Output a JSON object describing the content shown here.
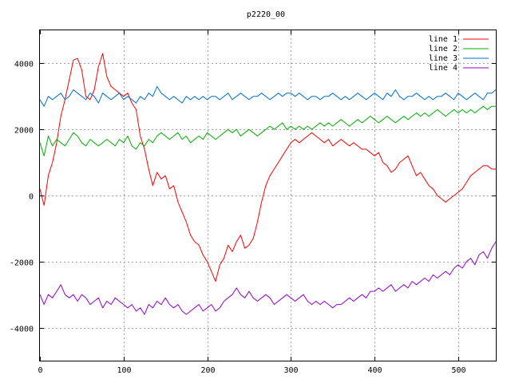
{
  "chart_data": {
    "type": "line",
    "title": "p2220_00",
    "xlabel": "",
    "ylabel": "",
    "xlim": [
      0,
      545
    ],
    "ylim": [
      -5000,
      5000
    ],
    "xticks": [
      0,
      100,
      200,
      300,
      400,
      500
    ],
    "yticks": [
      -4000,
      -2000,
      0,
      2000,
      4000
    ],
    "grid": true,
    "legend_position": "top-right",
    "series": [
      {
        "name": "line 1",
        "color": "#ff0000",
        "x": [
          0,
          5,
          10,
          15,
          20,
          25,
          30,
          35,
          40,
          45,
          50,
          55,
          60,
          65,
          70,
          75,
          80,
          85,
          90,
          95,
          100,
          105,
          110,
          115,
          120,
          125,
          130,
          135,
          140,
          145,
          150,
          155,
          160,
          165,
          170,
          175,
          180,
          185,
          190,
          195,
          200,
          205,
          210,
          215,
          220,
          225,
          230,
          235,
          240,
          245,
          250,
          255,
          260,
          265,
          270,
          275,
          280,
          285,
          290,
          295,
          300,
          305,
          310,
          315,
          320,
          325,
          330,
          335,
          340,
          345,
          350,
          355,
          360,
          365,
          370,
          375,
          380,
          385,
          390,
          395,
          400,
          405,
          410,
          415,
          420,
          425,
          430,
          435,
          440,
          445,
          450,
          455,
          460,
          465,
          470,
          475,
          480,
          485,
          490,
          495,
          500,
          505,
          510,
          515,
          520,
          525,
          530,
          535,
          540,
          545
        ],
        "y": [
          200,
          -300,
          600,
          1000,
          1600,
          2400,
          2900,
          3500,
          4100,
          4150,
          3800,
          3000,
          2900,
          3200,
          3900,
          4300,
          3600,
          3300,
          3200,
          3100,
          3000,
          3100,
          2800,
          2600,
          1800,
          1400,
          800,
          300,
          700,
          500,
          600,
          200,
          300,
          -200,
          -500,
          -800,
          -1200,
          -1400,
          -1500,
          -1800,
          -2000,
          -2300,
          -2600,
          -2100,
          -1900,
          -1500,
          -1700,
          -1400,
          -1200,
          -1600,
          -1500,
          -1300,
          -800,
          -200,
          300,
          600,
          800,
          1000,
          1200,
          1400,
          1600,
          1700,
          1600,
          1700,
          1800,
          1900,
          1800,
          1700,
          1600,
          1700,
          1500,
          1600,
          1700,
          1600,
          1500,
          1600,
          1500,
          1400,
          1400,
          1300,
          1200,
          1300,
          1000,
          900,
          700,
          800,
          1000,
          1100,
          1200,
          900,
          600,
          700,
          500,
          300,
          200,
          0,
          -100,
          -200,
          -100,
          0,
          100,
          200,
          400,
          600,
          700,
          800,
          900,
          900,
          800,
          800
        ]
      },
      {
        "name": "line 2",
        "color": "#00b000",
        "x": [
          0,
          5,
          10,
          15,
          20,
          25,
          30,
          35,
          40,
          45,
          50,
          55,
          60,
          65,
          70,
          75,
          80,
          85,
          90,
          95,
          100,
          105,
          110,
          115,
          120,
          125,
          130,
          135,
          140,
          145,
          150,
          155,
          160,
          165,
          170,
          175,
          180,
          185,
          190,
          195,
          200,
          205,
          210,
          215,
          220,
          225,
          230,
          235,
          240,
          245,
          250,
          255,
          260,
          265,
          270,
          275,
          280,
          285,
          290,
          295,
          300,
          305,
          310,
          315,
          320,
          325,
          330,
          335,
          340,
          345,
          350,
          355,
          360,
          365,
          370,
          375,
          380,
          385,
          390,
          395,
          400,
          405,
          410,
          415,
          420,
          425,
          430,
          435,
          440,
          445,
          450,
          455,
          460,
          465,
          470,
          475,
          480,
          485,
          490,
          495,
          500,
          505,
          510,
          515,
          520,
          525,
          530,
          535,
          540,
          545
        ],
        "y": [
          1600,
          1200,
          1800,
          1500,
          1700,
          1600,
          1500,
          1700,
          1900,
          1800,
          1600,
          1500,
          1700,
          1600,
          1500,
          1600,
          1700,
          1600,
          1500,
          1700,
          1600,
          1800,
          1500,
          1400,
          1600,
          1500,
          1700,
          1600,
          1800,
          1900,
          1800,
          1700,
          1800,
          1900,
          1700,
          1800,
          1600,
          1700,
          1800,
          1700,
          1900,
          1800,
          1700,
          1800,
          1900,
          2000,
          1900,
          2000,
          1800,
          1900,
          2000,
          1900,
          1800,
          1900,
          2000,
          2100,
          2000,
          2100,
          2200,
          2000,
          2100,
          2000,
          2100,
          2000,
          2100,
          2000,
          2100,
          2200,
          2100,
          2200,
          2100,
          2200,
          2300,
          2200,
          2100,
          2200,
          2300,
          2200,
          2300,
          2400,
          2300,
          2200,
          2300,
          2400,
          2300,
          2200,
          2300,
          2400,
          2300,
          2400,
          2500,
          2400,
          2500,
          2400,
          2500,
          2600,
          2500,
          2400,
          2500,
          2600,
          2500,
          2600,
          2500,
          2600,
          2500,
          2600,
          2700,
          2600,
          2700,
          2700
        ]
      },
      {
        "name": "line 3",
        "color": "#0070d0",
        "x": [
          0,
          5,
          10,
          15,
          20,
          25,
          30,
          35,
          40,
          45,
          50,
          55,
          60,
          65,
          70,
          75,
          80,
          85,
          90,
          95,
          100,
          105,
          110,
          115,
          120,
          125,
          130,
          135,
          140,
          145,
          150,
          155,
          160,
          165,
          170,
          175,
          180,
          185,
          190,
          195,
          200,
          205,
          210,
          215,
          220,
          225,
          230,
          235,
          240,
          245,
          250,
          255,
          260,
          265,
          270,
          275,
          280,
          285,
          290,
          295,
          300,
          305,
          310,
          315,
          320,
          325,
          330,
          335,
          340,
          345,
          350,
          355,
          360,
          365,
          370,
          375,
          380,
          385,
          390,
          395,
          400,
          405,
          410,
          415,
          420,
          425,
          430,
          435,
          440,
          445,
          450,
          455,
          460,
          465,
          470,
          475,
          480,
          485,
          490,
          495,
          500,
          505,
          510,
          515,
          520,
          525,
          530,
          535,
          540,
          545
        ],
        "y": [
          2900,
          2700,
          3000,
          2900,
          3000,
          3100,
          2900,
          3000,
          3200,
          3100,
          3000,
          2900,
          3100,
          3000,
          2800,
          3100,
          3000,
          2900,
          3000,
          3100,
          2900,
          3000,
          2900,
          2800,
          3000,
          2900,
          3100,
          3000,
          3300,
          3100,
          3000,
          2900,
          3000,
          2900,
          2800,
          3000,
          2900,
          3000,
          2900,
          3000,
          2900,
          3000,
          3000,
          2900,
          3000,
          3100,
          2900,
          3000,
          3100,
          3000,
          2900,
          3000,
          3000,
          3100,
          3000,
          2900,
          3000,
          3100,
          3000,
          3100,
          3100,
          3000,
          3100,
          3000,
          2900,
          3000,
          3000,
          2900,
          3000,
          3000,
          3100,
          3000,
          2900,
          3000,
          2900,
          3000,
          3100,
          3000,
          2900,
          3000,
          3100,
          3000,
          2900,
          3100,
          3000,
          3200,
          3000,
          2900,
          3000,
          3000,
          3100,
          3000,
          2900,
          3000,
          2900,
          3000,
          3000,
          3100,
          3000,
          2900,
          3100,
          3000,
          2900,
          3000,
          3100,
          3000,
          2900,
          3100,
          3100,
          3200
        ]
      },
      {
        "name": "line 4",
        "color": "#9500d3",
        "x": [
          0,
          5,
          10,
          15,
          20,
          25,
          30,
          35,
          40,
          45,
          50,
          55,
          60,
          65,
          70,
          75,
          80,
          85,
          90,
          95,
          100,
          105,
          110,
          115,
          120,
          125,
          130,
          135,
          140,
          145,
          150,
          155,
          160,
          165,
          170,
          175,
          180,
          185,
          190,
          195,
          200,
          205,
          210,
          215,
          220,
          225,
          230,
          235,
          240,
          245,
          250,
          255,
          260,
          265,
          270,
          275,
          280,
          285,
          290,
          295,
          300,
          305,
          310,
          315,
          320,
          325,
          330,
          335,
          340,
          345,
          350,
          355,
          360,
          365,
          370,
          375,
          380,
          385,
          390,
          395,
          400,
          405,
          410,
          415,
          420,
          425,
          430,
          435,
          440,
          445,
          450,
          455,
          460,
          465,
          470,
          475,
          480,
          485,
          490,
          495,
          500,
          505,
          510,
          515,
          520,
          525,
          530,
          535,
          540,
          545
        ],
        "y": [
          -3000,
          -3300,
          -3000,
          -3100,
          -2900,
          -2700,
          -3000,
          -3100,
          -3000,
          -3200,
          -3000,
          -3100,
          -3300,
          -3200,
          -3100,
          -3400,
          -3200,
          -3300,
          -3100,
          -3200,
          -3300,
          -3400,
          -3300,
          -3500,
          -3400,
          -3600,
          -3300,
          -3400,
          -3200,
          -3300,
          -3100,
          -3300,
          -3400,
          -3300,
          -3500,
          -3600,
          -3500,
          -3400,
          -3300,
          -3500,
          -3400,
          -3300,
          -3500,
          -3400,
          -3200,
          -3100,
          -3000,
          -2800,
          -3000,
          -3100,
          -2900,
          -3100,
          -3200,
          -3100,
          -3000,
          -3100,
          -3300,
          -3200,
          -3100,
          -3000,
          -3100,
          -3200,
          -3100,
          -3000,
          -3200,
          -3300,
          -3200,
          -3300,
          -3200,
          -3300,
          -3400,
          -3300,
          -3300,
          -3200,
          -3100,
          -3200,
          -3100,
          -3000,
          -3100,
          -2900,
          -2900,
          -2800,
          -2900,
          -2800,
          -2700,
          -2900,
          -2800,
          -2700,
          -2800,
          -2600,
          -2700,
          -2600,
          -2500,
          -2600,
          -2400,
          -2500,
          -2400,
          -2300,
          -2400,
          -2200,
          -2100,
          -2200,
          -2000,
          -1900,
          -2100,
          -1800,
          -1700,
          -1900,
          -1600,
          -1400
        ]
      }
    ]
  }
}
